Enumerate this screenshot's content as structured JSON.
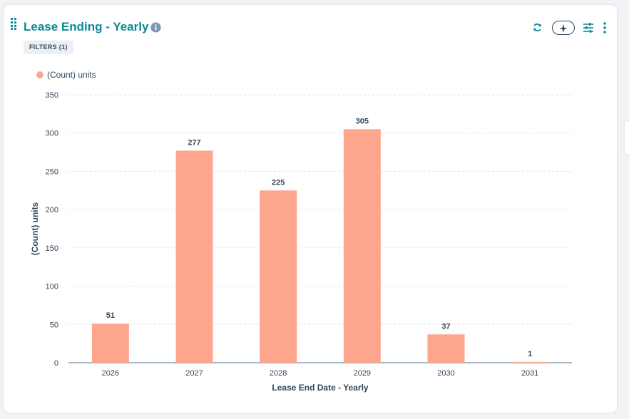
{
  "header": {
    "title": "Lease Ending - Yearly",
    "filters_label": "FILTERS (1)"
  },
  "icons": {
    "info": "info-icon",
    "refresh": "refresh-icon",
    "ai": "sparkle-icon",
    "settings": "sliders-icon",
    "more": "vertical-dots-icon"
  },
  "colors": {
    "title": "#0a8a98",
    "bar": "#fea58e",
    "text": "#33475b"
  },
  "legend": {
    "label": "(Count) units"
  },
  "chart_data": {
    "type": "bar",
    "categories": [
      "2026",
      "2027",
      "2028",
      "2029",
      "2030",
      "2031"
    ],
    "series": [
      {
        "name": "(Count) units",
        "values": [
          51,
          277,
          225,
          305,
          37,
          1
        ]
      }
    ],
    "data_labels": [
      "51",
      "277",
      "225",
      "305",
      "37",
      "1"
    ],
    "xlabel": "Lease End Date - Yearly",
    "ylabel": "(Count) units",
    "ylim": [
      0,
      350
    ],
    "yticks": [
      0,
      50,
      100,
      150,
      200,
      250,
      300,
      350
    ],
    "grid": true,
    "legend_position": "top-left"
  }
}
